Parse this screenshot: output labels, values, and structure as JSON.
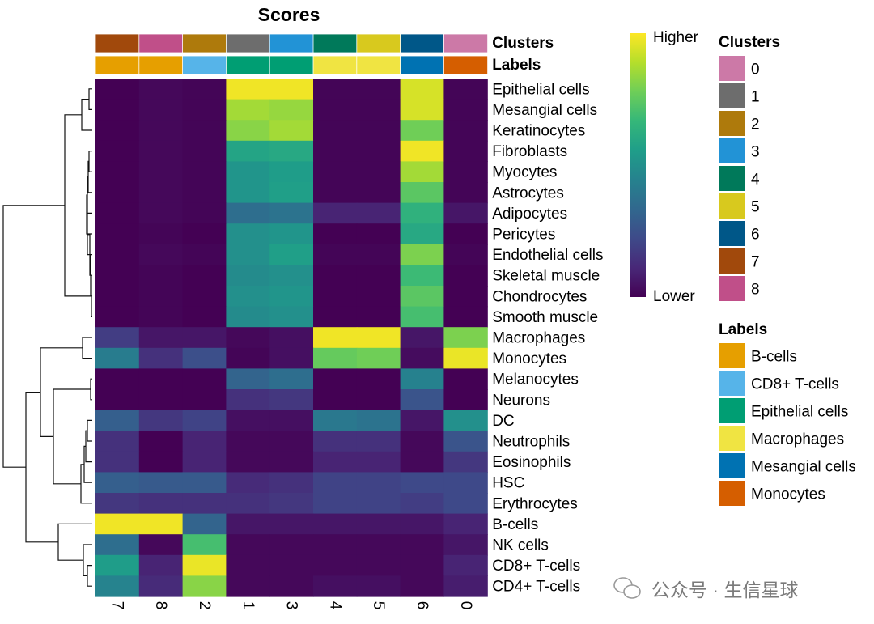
{
  "chart_data": {
    "type": "heatmap",
    "title": "Scores",
    "columns": [
      "7",
      "8",
      "2",
      "1",
      "3",
      "4",
      "5",
      "6",
      "0"
    ],
    "rows": [
      "Epithelial cells",
      "Mesangial cells",
      "Keratinocytes",
      "Fibroblasts",
      "Myocytes",
      "Astrocytes",
      "Adipocytes",
      "Pericytes",
      "Endothelial cells",
      "Skeletal muscle",
      "Chondrocytes",
      "Smooth muscle",
      "Macrophages",
      "Monocytes",
      "Melanocytes",
      "Neurons",
      "DC",
      "Neutrophils",
      "Eosinophils",
      "HSC",
      "Erythrocytes",
      "B-cells",
      "NK cells",
      "CD8+ T-cells",
      "CD4+ T-cells"
    ],
    "values": [
      [
        0.0,
        0.02,
        0.01,
        0.98,
        0.98,
        0.01,
        0.01,
        0.94,
        0.01
      ],
      [
        0.0,
        0.02,
        0.01,
        0.86,
        0.84,
        0.01,
        0.01,
        0.94,
        0.01
      ],
      [
        0.0,
        0.02,
        0.01,
        0.82,
        0.86,
        0.01,
        0.01,
        0.78,
        0.01
      ],
      [
        0.0,
        0.02,
        0.01,
        0.58,
        0.6,
        0.01,
        0.01,
        0.98,
        0.01
      ],
      [
        0.0,
        0.02,
        0.01,
        0.52,
        0.55,
        0.01,
        0.01,
        0.86,
        0.01
      ],
      [
        0.0,
        0.02,
        0.01,
        0.52,
        0.56,
        0.01,
        0.01,
        0.74,
        0.01
      ],
      [
        0.0,
        0.02,
        0.01,
        0.36,
        0.38,
        0.1,
        0.1,
        0.64,
        0.06
      ],
      [
        0.0,
        0.01,
        0.0,
        0.5,
        0.52,
        0.0,
        0.0,
        0.6,
        0.0
      ],
      [
        0.0,
        0.02,
        0.01,
        0.5,
        0.56,
        0.01,
        0.01,
        0.8,
        0.01
      ],
      [
        0.0,
        0.01,
        0.0,
        0.48,
        0.5,
        0.0,
        0.0,
        0.68,
        0.0
      ],
      [
        0.0,
        0.01,
        0.0,
        0.5,
        0.52,
        0.0,
        0.0,
        0.74,
        0.0
      ],
      [
        0.0,
        0.01,
        0.0,
        0.48,
        0.5,
        0.0,
        0.0,
        0.7,
        0.0
      ],
      [
        0.18,
        0.06,
        0.06,
        0.02,
        0.04,
        0.98,
        0.98,
        0.06,
        0.8
      ],
      [
        0.42,
        0.14,
        0.24,
        0.01,
        0.04,
        0.76,
        0.78,
        0.03,
        0.97
      ],
      [
        0.0,
        0.0,
        0.0,
        0.32,
        0.36,
        0.0,
        0.0,
        0.44,
        0.0
      ],
      [
        0.0,
        0.0,
        0.0,
        0.14,
        0.16,
        0.0,
        0.0,
        0.26,
        0.0
      ],
      [
        0.3,
        0.16,
        0.2,
        0.04,
        0.04,
        0.4,
        0.38,
        0.06,
        0.5
      ],
      [
        0.14,
        0.0,
        0.1,
        0.02,
        0.02,
        0.14,
        0.14,
        0.02,
        0.26
      ],
      [
        0.14,
        0.0,
        0.1,
        0.02,
        0.02,
        0.1,
        0.1,
        0.02,
        0.16
      ],
      [
        0.3,
        0.28,
        0.28,
        0.12,
        0.14,
        0.2,
        0.2,
        0.22,
        0.22
      ],
      [
        0.16,
        0.14,
        0.14,
        0.14,
        0.16,
        0.2,
        0.2,
        0.18,
        0.22
      ],
      [
        0.98,
        0.98,
        0.32,
        0.06,
        0.06,
        0.06,
        0.06,
        0.06,
        0.1
      ],
      [
        0.36,
        0.02,
        0.7,
        0.02,
        0.02,
        0.02,
        0.02,
        0.02,
        0.06
      ],
      [
        0.55,
        0.1,
        0.97,
        0.02,
        0.02,
        0.02,
        0.02,
        0.02,
        0.1
      ],
      [
        0.45,
        0.12,
        0.82,
        0.02,
        0.02,
        0.04,
        0.04,
        0.02,
        0.08
      ]
    ],
    "annotation_rows": [
      {
        "name": "Clusters",
        "values": [
          "7",
          "8",
          "2",
          "1",
          "3",
          "4",
          "5",
          "6",
          "0"
        ]
      },
      {
        "name": "Labels",
        "values": [
          "B-cells",
          "B-cells",
          "CD8+ T-cells",
          "Epithelial cells",
          "Epithelial cells",
          "Macrophages",
          "Macrophages",
          "Mesangial cells",
          "Monocytes"
        ]
      }
    ],
    "colorbar": {
      "high_label": "Higher",
      "low_label": "Lower",
      "colormap": "viridis",
      "range": [
        0,
        1
      ]
    },
    "legends": [
      {
        "title": "Clusters",
        "items": [
          {
            "label": "0",
            "color": "#cc79a7"
          },
          {
            "label": "1",
            "color": "#6d6d6d"
          },
          {
            "label": "2",
            "color": "#ae7a0c"
          },
          {
            "label": "3",
            "color": "#2293d6"
          },
          {
            "label": "4",
            "color": "#00795a"
          },
          {
            "label": "5",
            "color": "#d8c91e"
          },
          {
            "label": "6",
            "color": "#005788"
          },
          {
            "label": "7",
            "color": "#a1490c"
          },
          {
            "label": "8",
            "color": "#c04f89"
          }
        ]
      },
      {
        "title": "Labels",
        "items": [
          {
            "label": "B-cells",
            "color": "#e69f00"
          },
          {
            "label": "CD8+ T-cells",
            "color": "#56b4e9"
          },
          {
            "label": "Epithelial cells",
            "color": "#009e73"
          },
          {
            "label": "Macrophages",
            "color": "#f0e442"
          },
          {
            "label": "Mesangial cells",
            "color": "#0072b2"
          },
          {
            "label": "Monocytes",
            "color": "#d55e00"
          }
        ]
      }
    ],
    "dendrogram": "row clustering tree on the left"
  },
  "watermark": "公众号 · 生信星球"
}
